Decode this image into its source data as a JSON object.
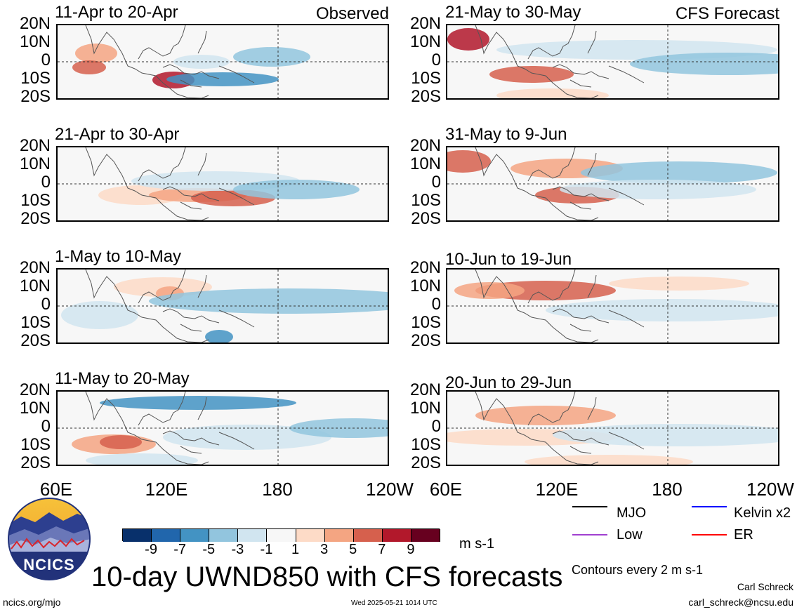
{
  "header": {
    "observed_label": "Observed",
    "forecast_label": "CFS Forecast"
  },
  "latitude_ticks": [
    "20N",
    "10N",
    "0",
    "10S",
    "20S"
  ],
  "longitude_ticks": [
    "60E",
    "120E",
    "180",
    "120W"
  ],
  "panels": {
    "observed": [
      {
        "title": "11-Apr to 20-Apr"
      },
      {
        "title": "21-Apr to 30-Apr"
      },
      {
        "title": "1-May to 10-May"
      },
      {
        "title": "11-May to 20-May"
      }
    ],
    "forecast": [
      {
        "title": "21-May to 30-May"
      },
      {
        "title": "31-May to 9-Jun"
      },
      {
        "title": "10-Jun to 19-Jun"
      },
      {
        "title": "20-Jun to 29-Jun"
      }
    ]
  },
  "colorbar": {
    "labels": [
      "-9",
      "-7",
      "-5",
      "-3",
      "-1",
      "1",
      "3",
      "5",
      "7",
      "9"
    ],
    "colors": [
      "#08306b",
      "#2166ac",
      "#4393c3",
      "#92c5de",
      "#d1e5f0",
      "#f7f7f7",
      "#fddbc7",
      "#f4a582",
      "#d6604d",
      "#b2182b",
      "#67001f"
    ],
    "units": "m s-1"
  },
  "legend": {
    "items": [
      {
        "label": "MJO",
        "color": "#000000"
      },
      {
        "label": "Kelvin x2",
        "color": "#0000ff"
      },
      {
        "label": "Low",
        "color": "#a040d0"
      },
      {
        "label": "ER",
        "color": "#ff0000"
      }
    ],
    "contour_note": "Contours every 2 m s-1"
  },
  "logo": {
    "text": "NCICS"
  },
  "footer": {
    "main_title": "10-day UWND850 with CFS forecasts",
    "url": "ncics.org/mjo",
    "timestamp": "Wed 2025-05-21 1014 UTC",
    "author": "Carl Schreck",
    "email": "carl_schreck@ncsu.edu"
  }
}
